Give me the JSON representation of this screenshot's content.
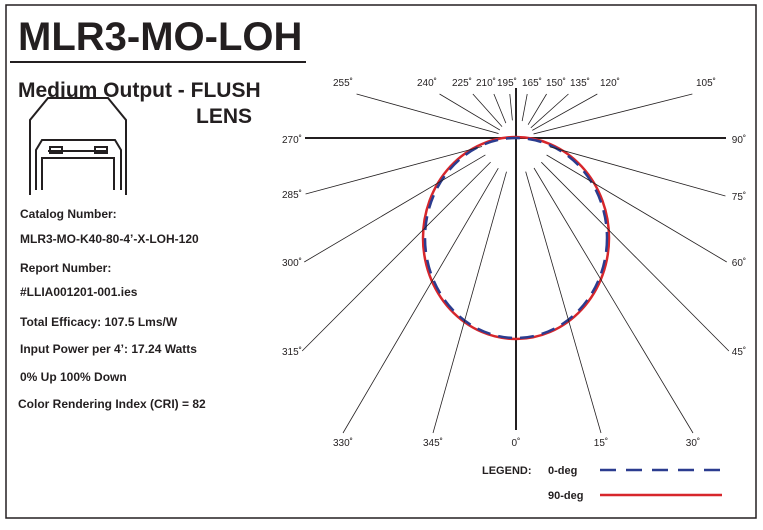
{
  "header": {
    "title": "MLR3-MO-LOH",
    "subtitle": "Medium Output - FLUSH",
    "subtitle2": "LENS"
  },
  "specs": [
    "Catalog Number:",
    "MLR3-MO-K40-80-4’-X-LOH-120",
    "Report Number:",
    "#LLIA001201-001.ies",
    "Total Efficacy:  107.5 Lms/W",
    "Input Power per 4’:  17.24 Watts",
    "0% Up    100% Down",
    "Color Rendering Index (CRI) = 82"
  ],
  "angles": [
    "255˚",
    "240˚",
    "225˚",
    "210˚",
    "195˚",
    "165˚",
    "150˚",
    "135˚",
    "120˚",
    "105˚",
    "270˚",
    "90˚",
    "285˚",
    "75˚",
    "300˚",
    "60˚",
    "315˚",
    "45˚",
    "330˚",
    "345˚",
    "0˚",
    "15˚",
    "30˚"
  ],
  "legend": {
    "title": "LEGEND:",
    "items": [
      "0-deg",
      "90-deg"
    ]
  }
}
